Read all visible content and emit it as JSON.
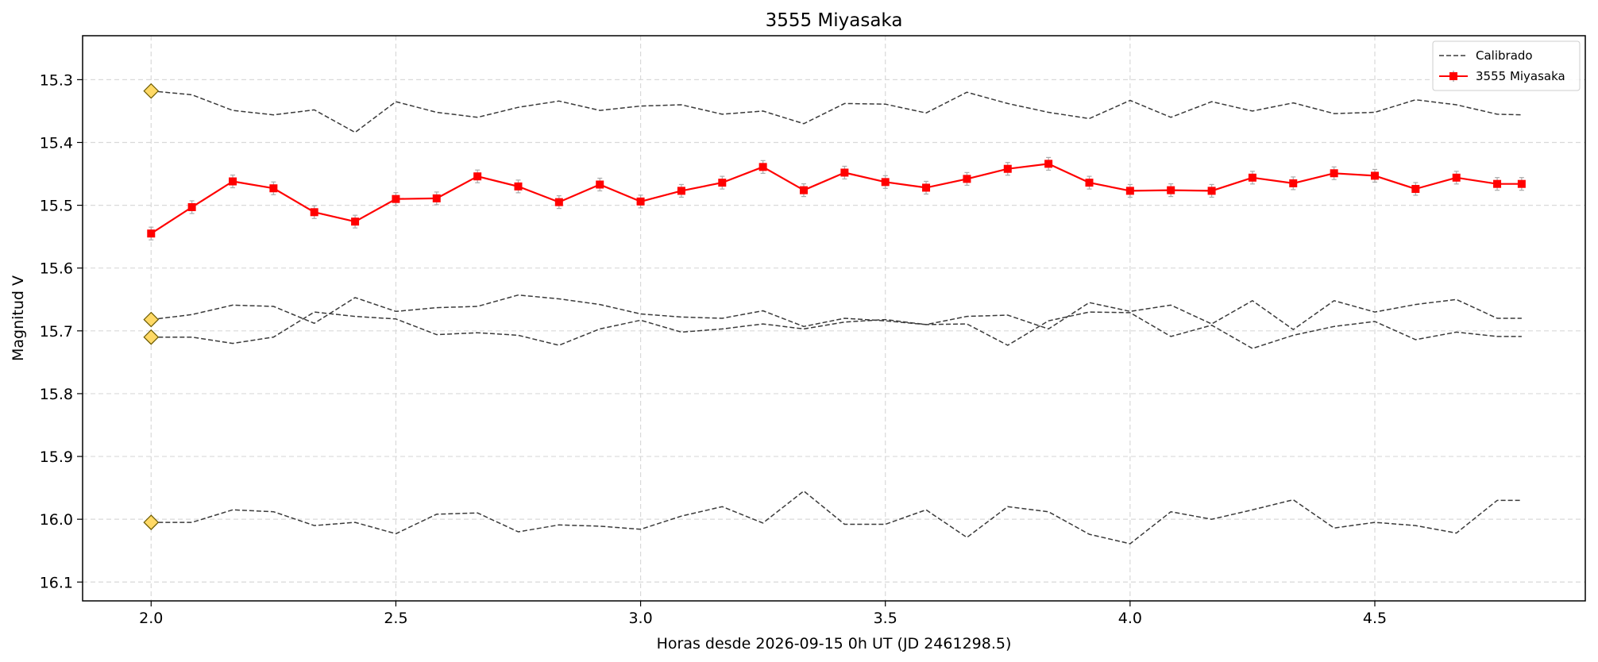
{
  "chart_data": {
    "type": "line",
    "title": "3555 Miyasaka",
    "xlabel": "Horas desde 2026-09-15 0h UT (JD 2461298.5)",
    "ylabel": "Magnitud V",
    "xlim": [
      1.86,
      4.93
    ],
    "ylim": [
      16.13,
      15.23
    ],
    "y_inverted": true,
    "grid": true,
    "legend_position": "top-right",
    "x_ticks": [
      2.0,
      2.5,
      3.0,
      3.5,
      4.0,
      4.5
    ],
    "x_tick_labels": [
      "2.0",
      "2.5",
      "3.0",
      "3.5",
      "4.0",
      "4.5"
    ],
    "y_ticks": [
      15.3,
      15.4,
      15.5,
      15.6,
      15.7,
      15.8,
      15.9,
      16.0,
      16.1
    ],
    "y_tick_labels": [
      "15.3",
      "15.4",
      "15.5",
      "15.6",
      "15.7",
      "15.8",
      "15.9",
      "16.0",
      "16.1"
    ],
    "x": [
      2.0,
      2.0833,
      2.1667,
      2.25,
      2.3333,
      2.4167,
      2.5,
      2.5833,
      2.6667,
      2.75,
      2.8333,
      2.9167,
      3.0,
      3.0833,
      3.1667,
      3.25,
      3.3333,
      3.4167,
      3.5,
      3.5833,
      3.6667,
      3.75,
      3.8333,
      3.9167,
      4.0,
      4.0833,
      4.1667,
      4.25,
      4.3333,
      4.4167,
      4.5,
      4.5833,
      4.6667,
      4.75,
      4.8
    ],
    "series": [
      {
        "name": "Calibrado",
        "style": "dashed",
        "color": "#3a3a3a",
        "group": "calibrado-1",
        "values": [
          15.318,
          15.324,
          15.349,
          15.356,
          15.348,
          15.384,
          15.335,
          15.352,
          15.36,
          15.344,
          15.334,
          15.349,
          15.342,
          15.34,
          15.355,
          15.35,
          15.37,
          15.338,
          15.339,
          15.353,
          15.32,
          15.338,
          15.352,
          15.362,
          15.333,
          15.36,
          15.335,
          15.35,
          15.337,
          15.354,
          15.352,
          15.332,
          15.34,
          15.355,
          15.356
        ]
      },
      {
        "name": "3555 Miyasaka",
        "style": "solid",
        "marker": "square",
        "error_bars": true,
        "color": "#ff0000",
        "values": [
          15.545,
          15.503,
          15.462,
          15.473,
          15.511,
          15.526,
          15.49,
          15.489,
          15.454,
          15.47,
          15.495,
          15.467,
          15.494,
          15.477,
          15.464,
          15.439,
          15.476,
          15.448,
          15.463,
          15.472,
          15.458,
          15.442,
          15.434,
          15.464,
          15.477,
          15.476,
          15.477,
          15.456,
          15.465,
          15.449,
          15.453,
          15.474,
          15.456,
          15.466,
          15.466
        ]
      },
      {
        "name": "Calibrado",
        "style": "dashed",
        "color": "#3a3a3a",
        "group": "calibrado-2",
        "values": [
          15.682,
          15.674,
          15.659,
          15.661,
          15.688,
          15.647,
          15.669,
          15.663,
          15.661,
          15.643,
          15.649,
          15.658,
          15.673,
          15.678,
          15.68,
          15.668,
          15.693,
          15.68,
          15.684,
          15.69,
          15.677,
          15.675,
          15.697,
          15.655,
          15.669,
          15.659,
          15.689,
          15.652,
          15.698,
          15.652,
          15.67,
          15.658,
          15.65,
          15.68,
          15.68
        ]
      },
      {
        "name": "Calibrado",
        "style": "dashed",
        "color": "#3a3a3a",
        "group": "calibrado-3",
        "values": [
          15.71,
          15.71,
          15.72,
          15.71,
          15.67,
          15.677,
          15.681,
          15.706,
          15.703,
          15.707,
          15.723,
          15.697,
          15.683,
          15.702,
          15.697,
          15.689,
          15.697,
          15.686,
          15.682,
          15.69,
          15.689,
          15.723,
          15.684,
          15.67,
          15.671,
          15.709,
          15.691,
          15.728,
          15.707,
          15.693,
          15.685,
          15.714,
          15.702,
          15.709,
          15.709
        ]
      },
      {
        "name": "Calibrado",
        "style": "dashed",
        "color": "#3a3a3a",
        "group": "calibrado-4",
        "values": [
          16.005,
          16.005,
          15.985,
          15.988,
          16.01,
          16.005,
          16.023,
          15.992,
          15.99,
          16.02,
          16.009,
          16.011,
          16.016,
          15.995,
          15.98,
          16.006,
          15.955,
          16.008,
          16.008,
          15.985,
          16.029,
          15.98,
          15.988,
          16.024,
          16.039,
          15.988,
          16.0,
          15.985,
          15.969,
          16.014,
          16.005,
          16.01,
          16.022,
          15.97,
          15.97
        ]
      }
    ],
    "reference_markers": {
      "shape": "diamond",
      "color": "#ffd966",
      "x": [
        2.0,
        2.0,
        2.0,
        2.0
      ],
      "y": [
        15.318,
        15.682,
        15.71,
        16.005
      ]
    },
    "legend": [
      {
        "label": "Calibrado",
        "style": "dashed",
        "color": "#3a3a3a"
      },
      {
        "label": "3555 Miyasaka",
        "style": "solid",
        "color": "#ff0000"
      }
    ]
  }
}
